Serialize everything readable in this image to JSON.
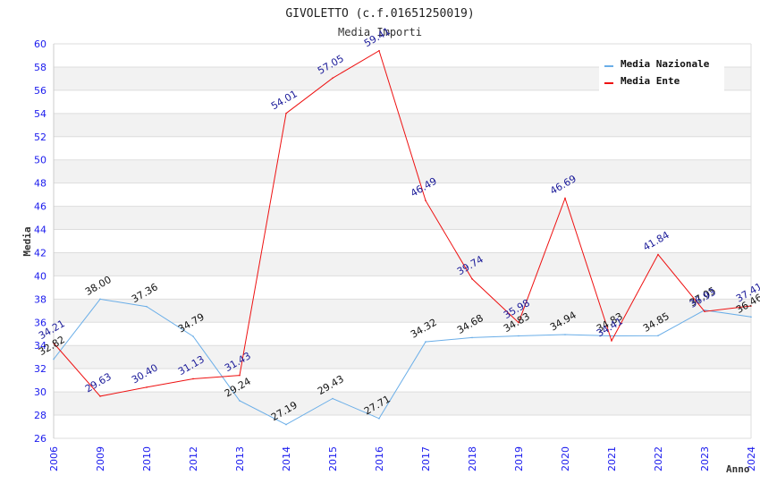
{
  "chart_data": {
    "type": "line",
    "title": "GIVOLETTO (c.f.01651250019)",
    "subtitle": "Media Importi",
    "xlabel": "Anno",
    "ylabel": "Media",
    "ylim": [
      26,
      60
    ],
    "yticks": [
      26,
      28,
      30,
      32,
      34,
      36,
      38,
      40,
      42,
      44,
      46,
      48,
      50,
      52,
      54,
      56,
      58,
      60
    ],
    "grid": true,
    "legend_position": "top-right",
    "categories": [
      "2006",
      "2009",
      "2010",
      "2012",
      "2013",
      "2014",
      "2015",
      "2016",
      "2017",
      "2018",
      "2019",
      "2020",
      "2021",
      "2022",
      "2023",
      "2024"
    ],
    "series": [
      {
        "name": "Media Nazionale",
        "color": "#6aaee8",
        "label_color": "#111111",
        "values": [
          32.82,
          38.0,
          37.36,
          34.79,
          29.24,
          27.19,
          29.43,
          27.71,
          34.32,
          34.68,
          34.83,
          34.94,
          34.83,
          34.85,
          37.05,
          36.46
        ],
        "labels": [
          "32.82",
          "38.00",
          "37.36",
          "34.79",
          "29.24",
          "27.19",
          "29.43",
          "27.71",
          "34.32",
          "34.68",
          "34.83",
          "34.94",
          "34.83",
          "34.85",
          "37.05",
          "36.46"
        ]
      },
      {
        "name": "Media Ente",
        "color": "#ee1111",
        "label_color": "#1a1a99",
        "values": [
          34.21,
          29.63,
          30.4,
          31.13,
          31.43,
          54.01,
          57.05,
          59.41,
          46.49,
          39.74,
          35.98,
          46.69,
          34.41,
          41.84,
          36.93,
          37.41
        ],
        "labels": [
          "34.21",
          "29.63",
          "30.40",
          "31.13",
          "31.43",
          "54.01",
          "57.05",
          "59.41",
          "46.49",
          "39.74",
          "35.98",
          "46.69",
          "34.41",
          "41.84",
          "36.93",
          "37.41"
        ]
      }
    ]
  }
}
